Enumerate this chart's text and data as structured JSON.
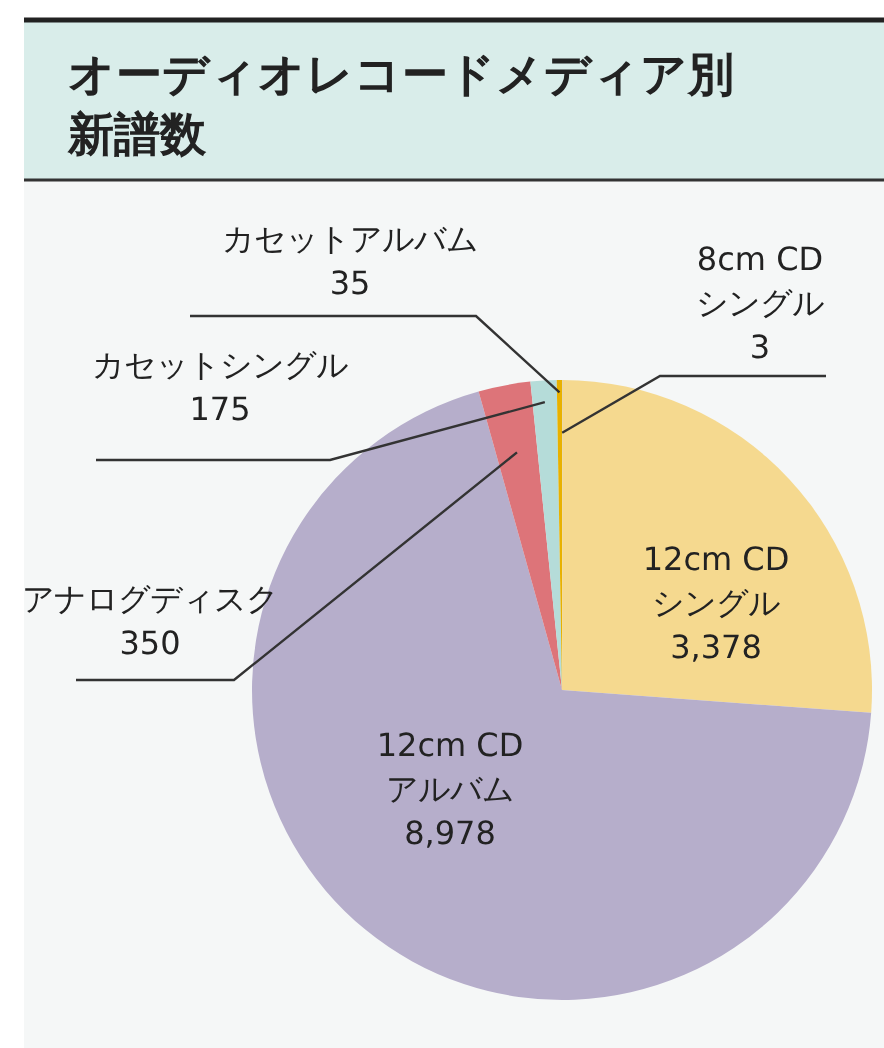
{
  "chart_data": {
    "type": "pie",
    "title": "オーディオレコードメディア別新譜数",
    "categories": [
      "8cm CD シングル",
      "12cm CD シングル",
      "12cm CD アルバム",
      "アナログディスク",
      "カセットシングル",
      "カセットアルバム"
    ],
    "values": [
      3,
      3378,
      8978,
      350,
      175,
      35
    ],
    "value_labels": [
      "3",
      "3,378",
      "8,978",
      "350",
      "175",
      "35"
    ],
    "colors": [
      "#a9a9b6",
      "#f5d98f",
      "#b6aecb",
      "#dd7479",
      "#b5dcd9",
      "#e8b100"
    ]
  }
}
